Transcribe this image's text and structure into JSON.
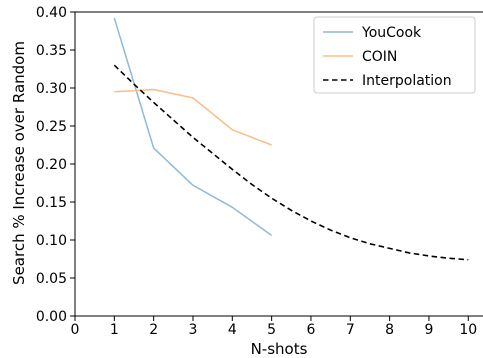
{
  "chart_data": {
    "type": "line",
    "xlabel": "N-shots",
    "ylabel": "Search % Increase over Random",
    "xlim": [
      0,
      10.4
    ],
    "ylim": [
      0.0,
      0.4
    ],
    "xticks": [
      0,
      1,
      2,
      3,
      4,
      5,
      6,
      7,
      8,
      9,
      10
    ],
    "yticks": [
      0.0,
      0.05,
      0.1,
      0.15,
      0.2,
      0.25,
      0.3,
      0.35,
      0.4
    ],
    "ytick_labels": [
      "0.00",
      "0.05",
      "0.10",
      "0.15",
      "0.20",
      "0.25",
      "0.30",
      "0.35",
      "0.40"
    ],
    "grid": false,
    "legend_position": "top-right",
    "series": [
      {
        "name": "YouCook",
        "color": "#8fb9d9",
        "style": "solid",
        "x": [
          1,
          2,
          3,
          4,
          5
        ],
        "values": [
          0.392,
          0.221,
          0.172,
          0.143,
          0.106
        ]
      },
      {
        "name": "COIN",
        "color": "#fdbd85",
        "style": "solid",
        "x": [
          1,
          2,
          3,
          4,
          5
        ],
        "values": [
          0.295,
          0.298,
          0.287,
          0.245,
          0.225
        ]
      },
      {
        "name": "Interpolation",
        "color": "#000000",
        "style": "dashed",
        "x": [
          1,
          1.5,
          2,
          2.5,
          3,
          3.5,
          4,
          4.5,
          5,
          5.5,
          6,
          6.5,
          7,
          7.5,
          8,
          8.5,
          9,
          9.5,
          10
        ],
        "values": [
          0.33,
          0.305,
          0.281,
          0.258,
          0.235,
          0.214,
          0.193,
          0.173,
          0.155,
          0.139,
          0.125,
          0.113,
          0.103,
          0.095,
          0.089,
          0.083,
          0.079,
          0.076,
          0.074
        ]
      }
    ]
  }
}
